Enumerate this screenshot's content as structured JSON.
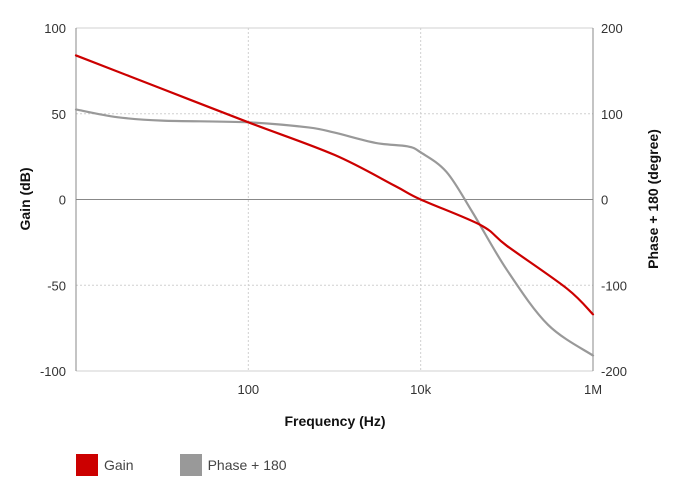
{
  "chart_data": {
    "type": "line",
    "xlabel": "Frequency (Hz)",
    "ylabel_left": "Gain (dB)",
    "ylabel_right": "Phase + 180 (degree)",
    "x_scale": "log",
    "xlim": [
      1,
      1000000
    ],
    "ylim_left": [
      -100,
      100
    ],
    "ylim_right": [
      -200,
      200
    ],
    "x_ticks": [
      {
        "value": 100,
        "label": "100"
      },
      {
        "value": 10000,
        "label": "10k"
      },
      {
        "value": 1000000,
        "label": "1M"
      }
    ],
    "y_left_ticks": [
      {
        "value": 100,
        "label": "100"
      },
      {
        "value": 50,
        "label": "50"
      },
      {
        "value": 0,
        "label": "0"
      },
      {
        "value": -50,
        "label": "-50"
      },
      {
        "value": -100,
        "label": "-100"
      }
    ],
    "y_right_ticks": [
      {
        "value": 200,
        "label": "200"
      },
      {
        "value": 100,
        "label": "100"
      },
      {
        "value": 0,
        "label": "0"
      },
      {
        "value": -100,
        "label": "-100"
      },
      {
        "value": -200,
        "label": "-200"
      }
    ],
    "grid": true,
    "legend_position": "bottom-left",
    "series": [
      {
        "name": "Gain",
        "axis": "left",
        "color": "#cc0000",
        "x": [
          1,
          10,
          100,
          1000,
          5000,
          10000,
          50000,
          100000,
          500000,
          1000000
        ],
        "y": [
          84,
          64.5,
          45,
          26,
          8,
          0,
          -15,
          -27,
          -52,
          -67
        ]
      },
      {
        "name": "Phase + 180",
        "axis": "right",
        "color": "#999999",
        "x": [
          1,
          3,
          10,
          100,
          500,
          1000,
          3000,
          7000,
          10000,
          20000,
          40000,
          100000,
          300000,
          1000000
        ],
        "y": [
          105,
          96,
          92,
          90,
          84,
          78,
          66,
          62,
          55,
          32,
          -15,
          -82,
          -146,
          -182
        ]
      }
    ]
  }
}
